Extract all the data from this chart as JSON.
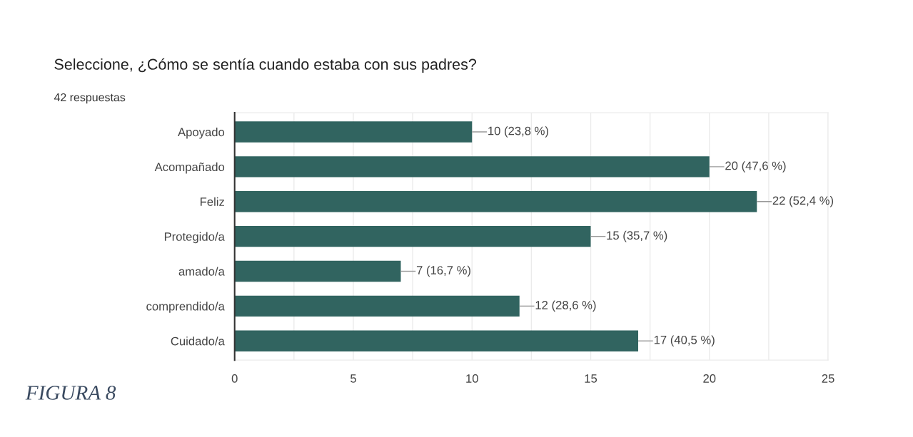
{
  "chart_data": {
    "type": "bar",
    "orientation": "horizontal",
    "title": "Seleccione, ¿Cómo se sentía cuando estaba con sus padres?",
    "subtitle": "42 respuestas",
    "categories": [
      "Apoyado",
      "Acompañado",
      "Feliz",
      "Protegido/a",
      "amado/a",
      "comprendido/a",
      "Cuidado/a"
    ],
    "values": [
      10,
      20,
      22,
      15,
      7,
      12,
      17
    ],
    "value_labels": [
      "10 (23,8 %)",
      "20 (47,6 %)",
      "22 (52,4 %)",
      "15 (35,7 %)",
      "7 (16,7 %)",
      "12 (28,6 %)",
      "17 (40,5 %)"
    ],
    "color": "#316460",
    "xlim": [
      0,
      25
    ],
    "xticks": [
      0,
      {
        "value": 2.5,
        "label": null
      },
      5,
      {
        "value": 7.5,
        "label": null
      },
      10,
      {
        "value": 12.5,
        "label": null
      },
      15,
      {
        "value": 17.5,
        "label": null
      },
      20,
      {
        "value": 22.5,
        "label": null
      },
      25
    ],
    "grid": "x",
    "annotations": [
      "FIGURA 8"
    ]
  }
}
